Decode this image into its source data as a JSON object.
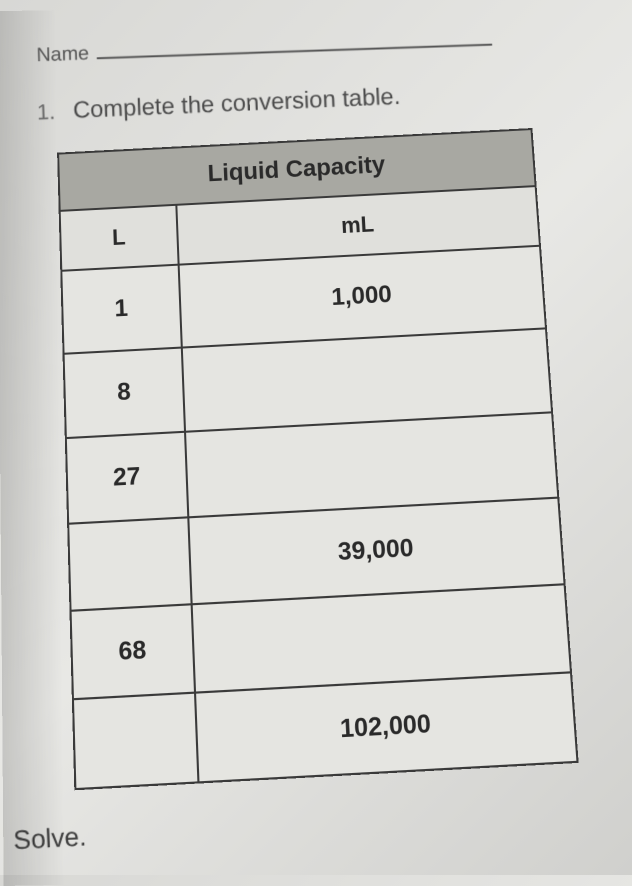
{
  "name_label": "Name",
  "question_number": "1.",
  "question_text": "Complete the conversion table.",
  "table": {
    "title": "Liquid Capacity",
    "columns": [
      "L",
      "mL"
    ],
    "rows": [
      [
        "1",
        "1,000"
      ],
      [
        "8",
        ""
      ],
      [
        "27",
        ""
      ],
      [
        "",
        "39,000"
      ],
      [
        "68",
        ""
      ],
      [
        "",
        "102,000"
      ]
    ]
  },
  "solve_label": "Solve."
}
